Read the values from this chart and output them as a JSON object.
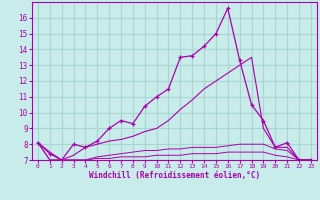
{
  "xlabel": "Windchill (Refroidissement éolien,°C)",
  "bg_color": "#c8ecea",
  "grid_color": "#a8d4d4",
  "line_color": "#aa00aa",
  "x": [
    0,
    1,
    2,
    3,
    4,
    5,
    6,
    7,
    8,
    9,
    10,
    11,
    12,
    13,
    14,
    15,
    16,
    17,
    18,
    19,
    20,
    21,
    22,
    23
  ],
  "series1": [
    8.1,
    7.4,
    7.0,
    8.0,
    7.8,
    8.2,
    9.0,
    9.5,
    9.3,
    10.4,
    11.0,
    11.5,
    13.5,
    13.6,
    14.2,
    15.0,
    16.6,
    13.3,
    10.5,
    9.5,
    7.8,
    8.1,
    7.0,
    7.0
  ],
  "series2": [
    8.1,
    7.5,
    7.0,
    7.3,
    7.8,
    8.0,
    8.2,
    8.3,
    8.5,
    8.8,
    9.0,
    9.5,
    10.2,
    10.8,
    11.5,
    12.0,
    12.5,
    13.0,
    13.5,
    9.0,
    7.8,
    7.8,
    7.0,
    7.0
  ],
  "series3": [
    8.1,
    7.0,
    7.0,
    7.0,
    7.0,
    7.1,
    7.1,
    7.2,
    7.2,
    7.2,
    7.3,
    7.3,
    7.3,
    7.4,
    7.4,
    7.4,
    7.5,
    7.5,
    7.5,
    7.5,
    7.3,
    7.2,
    7.0,
    7.0
  ],
  "series4": [
    8.1,
    7.0,
    7.0,
    7.0,
    7.0,
    7.2,
    7.3,
    7.4,
    7.5,
    7.6,
    7.6,
    7.7,
    7.7,
    7.8,
    7.8,
    7.8,
    7.9,
    8.0,
    8.0,
    8.0,
    7.7,
    7.6,
    7.0,
    7.0
  ],
  "ylim": [
    7,
    17
  ],
  "xlim": [
    -0.5,
    23.5
  ],
  "yticks": [
    7,
    8,
    9,
    10,
    11,
    12,
    13,
    14,
    15,
    16
  ],
  "xticks": [
    0,
    1,
    2,
    3,
    4,
    5,
    6,
    7,
    8,
    9,
    10,
    11,
    12,
    13,
    14,
    15,
    16,
    17,
    18,
    19,
    20,
    21,
    22,
    23
  ]
}
